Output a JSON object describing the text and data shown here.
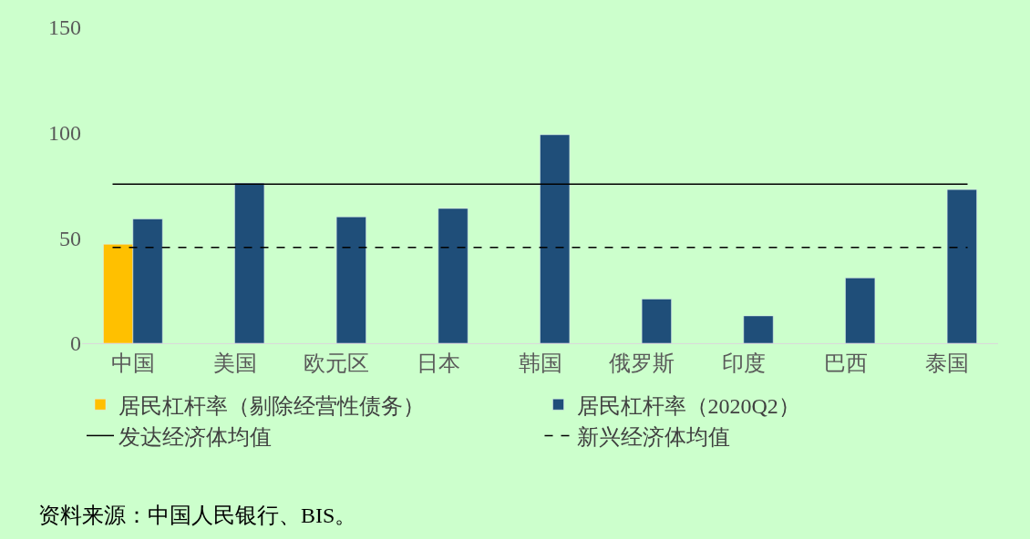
{
  "chart_data": {
    "type": "bar",
    "categories": [
      "中国",
      "美国",
      "欧元区",
      "日本",
      "韩国",
      "俄罗斯",
      "印度",
      "巴西",
      "泰国"
    ],
    "series": [
      {
        "name": "居民杠杆率（剔除经营性债务）",
        "color": "#ffc000",
        "values": [
          47,
          null,
          null,
          null,
          null,
          null,
          null,
          null,
          null
        ]
      },
      {
        "name": "居民杠杆率（2020Q2）",
        "color": "#1f4e79",
        "values": [
          59,
          76,
          60,
          64,
          99,
          21,
          13,
          31,
          73
        ]
      }
    ],
    "ylim": [
      0,
      150
    ],
    "yticks": [
      0,
      50,
      100,
      150
    ],
    "grid": false,
    "legend": "bottom",
    "ref_lines": [
      {
        "axis": "y",
        "value": 75.5,
        "label": "发达经济体均值",
        "color": "#000000",
        "line_style": "solid"
      },
      {
        "axis": "y",
        "value": 45.5,
        "label": "新兴经济体均值",
        "color": "#000000",
        "line_style": "dashed"
      }
    ],
    "annotations": [
      "资料来源：中国人民银行、BIS。"
    ]
  }
}
